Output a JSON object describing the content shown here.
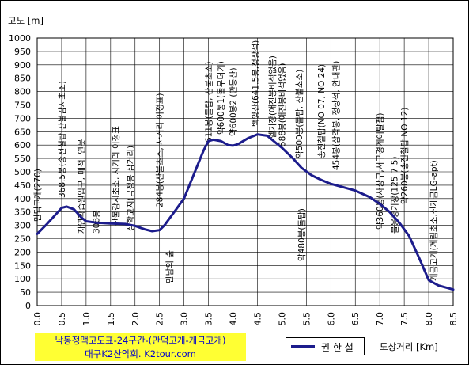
{
  "chart_data": {
    "type": "line",
    "ylabel": "고도 [m]",
    "xlabel": "도상거리 [Km]",
    "xlim": [
      0.0,
      8.5
    ],
    "ylim": [
      0,
      1000
    ],
    "x_ticks": [
      "0.0",
      "0.5",
      "1.0",
      "1.5",
      "2.0",
      "2.5",
      "3.0",
      "3.5",
      "4.0",
      "4.5",
      "5.0",
      "5.5",
      "6.0",
      "6.5",
      "7.0",
      "7.5",
      "8.0",
      "8.5"
    ],
    "y_ticks": [
      "0",
      "50",
      "100",
      "150",
      "200",
      "250",
      "300",
      "350",
      "400",
      "450",
      "500",
      "550",
      "600",
      "650",
      "700",
      "750",
      "800",
      "850",
      "900",
      "950",
      "1000"
    ],
    "grid": true,
    "series": [
      {
        "name": "권 한 철",
        "color": "#1c1c8c",
        "x": [
          0.0,
          0.2,
          0.4,
          0.5,
          0.6,
          0.75,
          0.9,
          1.0,
          1.2,
          1.5,
          1.8,
          2.0,
          2.2,
          2.35,
          2.5,
          2.6,
          2.8,
          3.0,
          3.2,
          3.4,
          3.5,
          3.6,
          3.75,
          3.9,
          4.0,
          4.1,
          4.3,
          4.5,
          4.7,
          5.0,
          5.2,
          5.4,
          5.6,
          5.8,
          6.0,
          6.2,
          6.5,
          6.8,
          7.0,
          7.2,
          7.4,
          7.6,
          7.8,
          8.0,
          8.2,
          8.5
        ],
        "y": [
          268,
          305,
          345,
          365,
          370,
          360,
          330,
          315,
          310,
          307,
          305,
          298,
          285,
          278,
          282,
          300,
          350,
          400,
          490,
          580,
          615,
          620,
          615,
          600,
          598,
          603,
          625,
          640,
          635,
          590,
          555,
          515,
          488,
          470,
          455,
          445,
          430,
          405,
          380,
          350,
          310,
          260,
          180,
          95,
          75,
          60
        ]
      }
    ],
    "annotations": [
      {
        "text": "만덕고개(270)",
        "x": 0.0
      },
      {
        "text": "368.5봉(송전철탑,산불감시초소)",
        "x": 0.5
      },
      {
        "text": "자연학습원입구, 매점, 연못",
        "x": 0.9
      },
      {
        "text": "308봉",
        "x": 1.2
      },
      {
        "text": "산불감시초소, 사거리 이정표",
        "x": 1.6
      },
      {
        "text": "상학고지(금정봉 삼거리)",
        "x": 1.9
      },
      {
        "text": "284봉(산불초소, 사거리 이정표)",
        "x": 2.5
      },
      {
        "text": "만남의 숲",
        "x": 2.7
      },
      {
        "text": "611봉(돌탑, 산불초소)",
        "x": 3.5
      },
      {
        "text": "약600봉1(돌무더기)",
        "x": 3.75
      },
      {
        "text": "약600봉2 (만등산)",
        "x": 4.0
      },
      {
        "text": "백양산(641.5봉,정상석)",
        "x": 4.45
      },
      {
        "text": "헬기장(애진봉비석없음)",
        "x": 4.8
      },
      {
        "text": "588봉(애진봉비석없음)",
        "x": 5.0
      },
      {
        "text": "약480봉(돌탑)",
        "x": 5.4
      },
      {
        "text": "약500봉(돌탑, 산불초소)",
        "x": 5.35
      },
      {
        "text": "송전철탑(NO 07, NO 24)",
        "x": 5.8
      },
      {
        "text": "454봉(삼각봉, 정상석, 안내판)",
        "x": 6.1
      },
      {
        "text": "약360봉(사상구,서구경계이탈점)",
        "x": 7.0
      },
      {
        "text": "불웅령기장(125-7-5)",
        "x": 7.3
      },
      {
        "text": "약260봉(송전철탑 NO 12)",
        "x": 7.5
      },
      {
        "text": "개금고개(계림초소,신개금LG-apt)",
        "x": 8.1
      }
    ]
  },
  "caption": {
    "line1": "낙동정맥고도표-24구간-(만덕고개-개금고개)",
    "line2": "대구K2산악회. K2tour.com"
  }
}
